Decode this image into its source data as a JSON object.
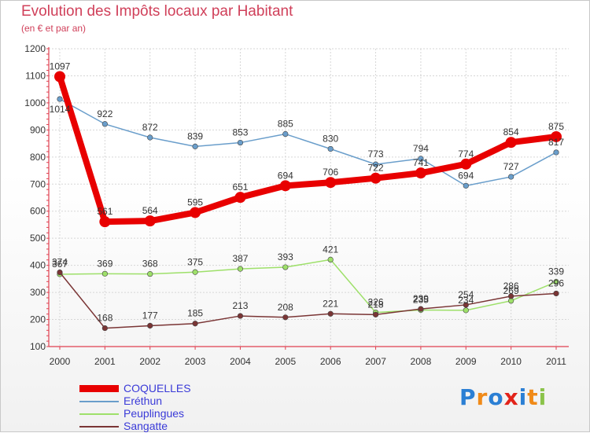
{
  "header": {
    "title": "Evolution des Impôts locaux par Habitant",
    "subtitle": "(en € et par an)"
  },
  "logo": {
    "text": "Proxiti",
    "letter_colors": [
      "#2b7fd4",
      "#f08a18",
      "#2b7fd4",
      "#e2231a",
      "#2b7fd4",
      "#f08a18",
      "#8bc34a"
    ]
  },
  "chart_data": {
    "type": "line",
    "title": "Evolution des Impôts locaux par Habitant",
    "subtitle": "(en € et par an)",
    "xlabel": "",
    "ylabel": "",
    "categories": [
      "2000",
      "2001",
      "2002",
      "2003",
      "2004",
      "2005",
      "2006",
      "2007",
      "2008",
      "2009",
      "2010",
      "2011"
    ],
    "yticks": [
      "100",
      "200",
      "300",
      "400",
      "500",
      "600",
      "700",
      "800",
      "900",
      "1000",
      "1100",
      "1200"
    ],
    "ylim": [
      100,
      1200
    ],
    "grid": true,
    "legend_position": "bottom-left",
    "series": [
      {
        "name": "COQUELLES",
        "color": "#e80000",
        "values": [
          1097,
          561,
          564,
          595,
          651,
          694,
          706,
          722,
          741,
          774,
          854,
          875
        ],
        "labels": [
          "1097",
          "561",
          "564",
          "595",
          "651",
          "694",
          "706",
          "722",
          "741",
          "774",
          "854",
          "875"
        ],
        "label_pos": [
          "above",
          "above",
          "above",
          "above",
          "above",
          "above",
          "above",
          "above",
          "above",
          "above",
          "above",
          "above"
        ]
      },
      {
        "name": "Eréthun",
        "color": "#6a9ecb",
        "values": [
          1014,
          922,
          872,
          839,
          853,
          885,
          830,
          773,
          794,
          694,
          727,
          817
        ],
        "labels": [
          "1014",
          "922",
          "872",
          "839",
          "853",
          "885",
          "830",
          "773",
          "794",
          "694",
          "727",
          "817"
        ],
        "label_pos": [
          "below",
          "above",
          "above",
          "above",
          "above",
          "above",
          "above",
          "above",
          "above",
          "above",
          "above",
          "above"
        ]
      },
      {
        "name": "Peuplingues",
        "color": "#9ee06a",
        "values": [
          367,
          369,
          368,
          375,
          387,
          393,
          421,
          226,
          235,
          234,
          269,
          339
        ],
        "labels": [
          "367",
          "369",
          "368",
          "375",
          "387",
          "393",
          "421",
          "226",
          "235",
          "234",
          "269",
          "339"
        ],
        "label_pos": [
          "above",
          "above",
          "above",
          "above",
          "above",
          "above",
          "above",
          "above",
          "above",
          "above",
          "above",
          "above"
        ]
      },
      {
        "name": "Sangatte",
        "color": "#7a3535",
        "values": [
          374,
          168,
          177,
          185,
          213,
          208,
          221,
          218,
          239,
          254,
          286,
          296
        ],
        "labels": [
          "374",
          "168",
          "177",
          "185",
          "213",
          "208",
          "221",
          "218",
          "239",
          "254",
          "286",
          "296"
        ],
        "label_pos": [
          "above",
          "above",
          "above",
          "above",
          "above",
          "above",
          "above",
          "above",
          "above",
          "above",
          "above",
          "above"
        ]
      }
    ]
  }
}
